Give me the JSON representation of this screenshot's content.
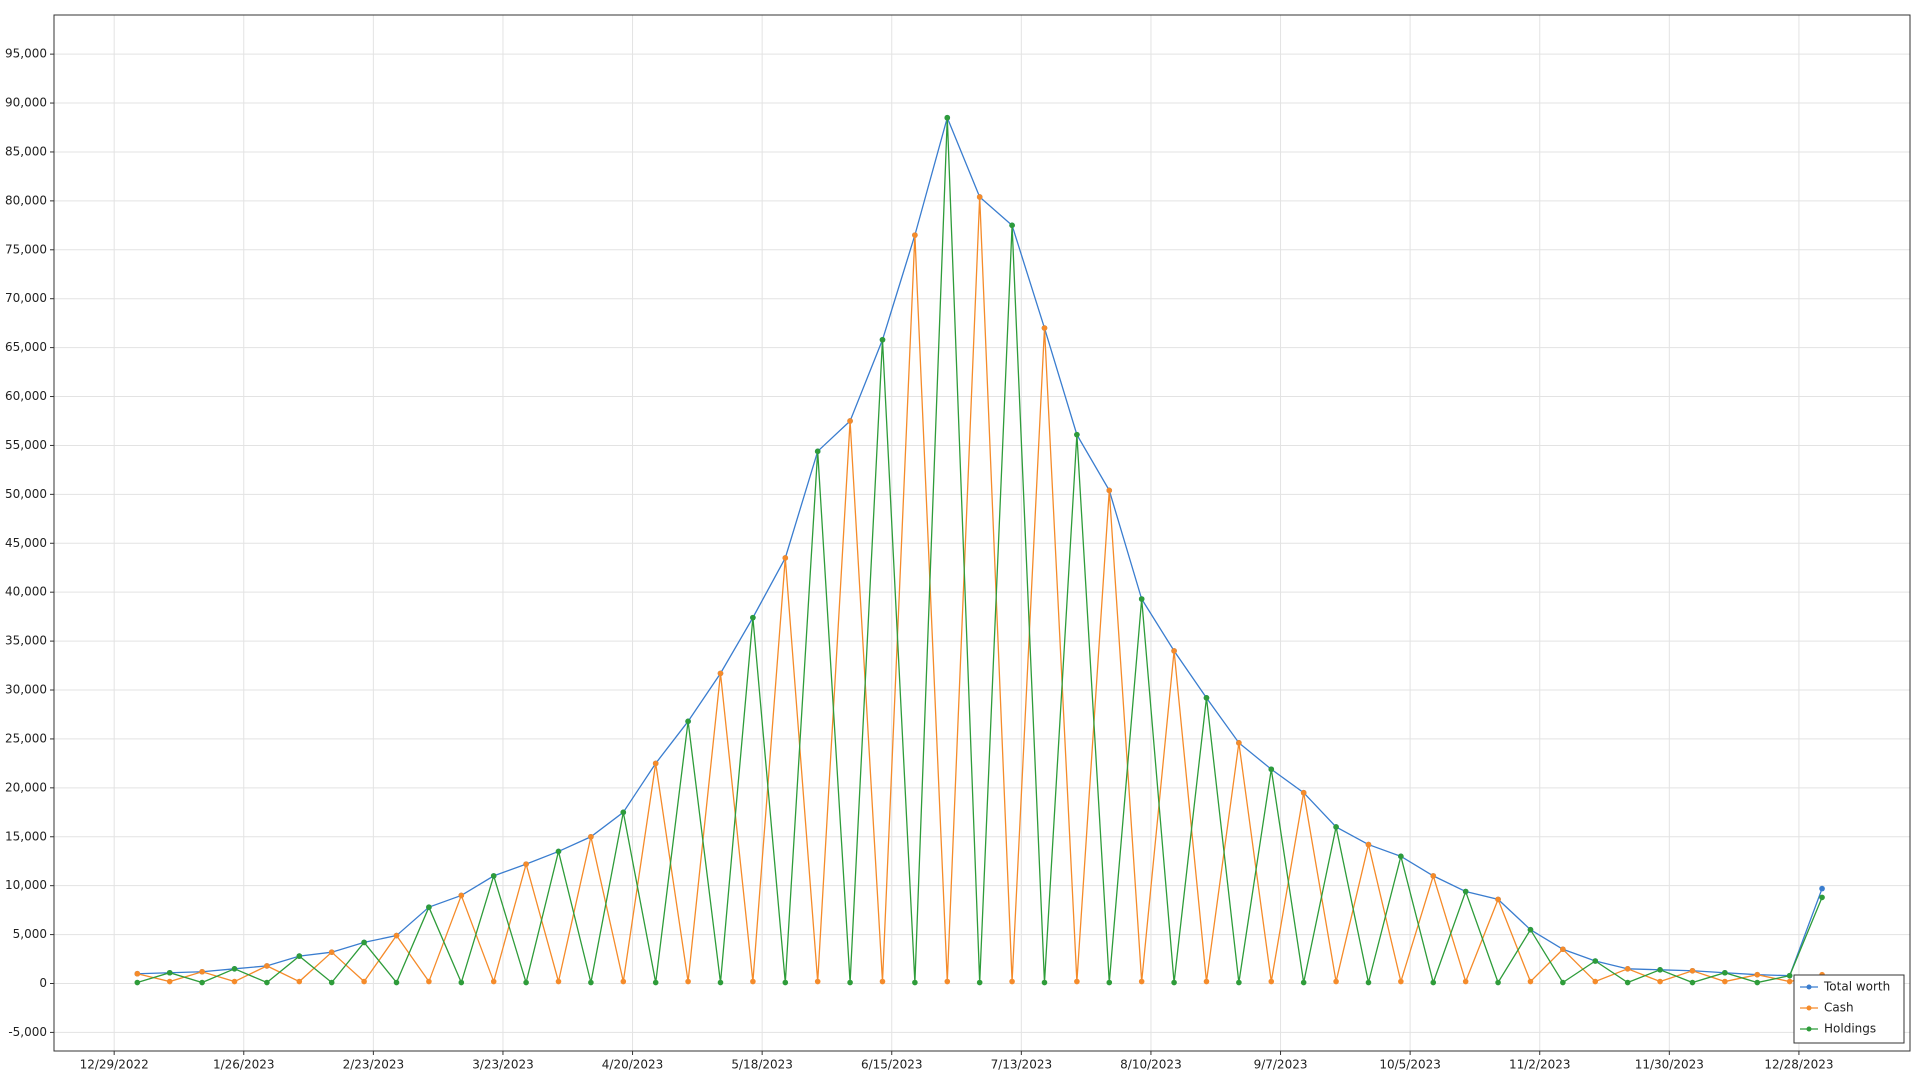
{
  "chart_data": {
    "type": "line",
    "x": [
      "1/3/2023",
      "1/10/2023",
      "1/17/2023",
      "1/24/2023",
      "1/31/2023",
      "2/7/2023",
      "2/14/2023",
      "2/21/2023",
      "2/28/2023",
      "3/7/2023",
      "3/14/2023",
      "3/21/2023",
      "3/28/2023",
      "4/4/2023",
      "4/11/2023",
      "4/18/2023",
      "4/25/2023",
      "5/2/2023",
      "5/9/2023",
      "5/16/2023",
      "5/23/2023",
      "5/30/2023",
      "6/6/2023",
      "6/13/2023",
      "6/20/2023",
      "6/27/2023",
      "7/4/2023",
      "7/11/2023",
      "7/18/2023",
      "7/25/2023",
      "8/1/2023",
      "8/8/2023",
      "8/15/2023",
      "8/22/2023",
      "8/29/2023",
      "9/5/2023",
      "9/12/2023",
      "9/19/2023",
      "9/26/2023",
      "10/3/2023",
      "10/10/2023",
      "10/17/2023",
      "10/24/2023",
      "10/31/2023",
      "11/7/2023",
      "11/14/2023",
      "11/21/2023",
      "11/28/2023",
      "12/5/2023",
      "12/12/2023",
      "12/19/2023",
      "12/26/2023",
      "1/2/2024"
    ],
    "series": [
      {
        "name": "Total worth",
        "color": "#3a7dcf",
        "values": [
          1000,
          1100,
          1200,
          1500,
          1800,
          2800,
          3200,
          4200,
          4900,
          7800,
          9000,
          11000,
          12200,
          13500,
          15000,
          17500,
          22500,
          26800,
          31700,
          37400,
          43500,
          54400,
          57500,
          65800,
          76500,
          88500,
          80400,
          77500,
          67000,
          56100,
          50400,
          39300,
          34000,
          29200,
          24600,
          21900,
          19500,
          16000,
          14200,
          13000,
          11000,
          9400,
          8600,
          5500,
          3500,
          2300,
          1500,
          1400,
          1300,
          1100,
          900,
          800,
          9700
        ]
      },
      {
        "name": "Cash",
        "color": "#f58b2a",
        "values": [
          1000,
          200,
          1200,
          200,
          1800,
          200,
          3200,
          200,
          4900,
          200,
          9000,
          200,
          12200,
          200,
          15000,
          200,
          22500,
          200,
          31700,
          200,
          43500,
          200,
          57500,
          200,
          76500,
          200,
          80400,
          200,
          67000,
          200,
          50400,
          200,
          34000,
          200,
          24600,
          200,
          19500,
          200,
          14200,
          200,
          11000,
          200,
          8600,
          200,
          3500,
          200,
          1500,
          200,
          1300,
          200,
          900,
          200,
          900
        ]
      },
      {
        "name": "Holdings",
        "color": "#2e9c3a",
        "values": [
          100,
          1100,
          100,
          1500,
          100,
          2800,
          100,
          4200,
          100,
          7800,
          100,
          11000,
          100,
          13500,
          100,
          17500,
          100,
          26800,
          100,
          37400,
          100,
          54400,
          100,
          65800,
          100,
          88500,
          100,
          77500,
          100,
          56100,
          100,
          39300,
          100,
          29200,
          100,
          21900,
          100,
          16000,
          100,
          13000,
          100,
          9400,
          100,
          5500,
          100,
          2300,
          100,
          1400,
          100,
          1100,
          100,
          800,
          8800
        ]
      }
    ],
    "xlim": [
      "12/16/2022",
      "1/21/2024"
    ],
    "xticks": [
      "12/29/2022",
      "1/26/2023",
      "2/23/2023",
      "3/23/2023",
      "4/20/2023",
      "5/18/2023",
      "6/15/2023",
      "7/13/2023",
      "8/10/2023",
      "9/7/2023",
      "10/5/2023",
      "11/2/2023",
      "11/30/2023",
      "12/28/2023"
    ],
    "ylim": [
      -6900,
      99000
    ],
    "yticks": [
      {
        "value": -5000,
        "label": "-5,000"
      },
      0,
      {
        "value": 5000,
        "label": "5,000"
      },
      {
        "value": 10000,
        "label": "10,000"
      },
      {
        "value": 15000,
        "label": "15,000"
      },
      {
        "value": 20000,
        "label": "20,000"
      },
      {
        "value": 25000,
        "label": "25,000"
      },
      {
        "value": 30000,
        "label": "30,000"
      },
      {
        "value": 35000,
        "label": "35,000"
      },
      {
        "value": 40000,
        "label": "40,000"
      },
      {
        "value": 45000,
        "label": "45,000"
      },
      {
        "value": 50000,
        "label": "50,000"
      },
      {
        "value": 55000,
        "label": "55,000"
      },
      {
        "value": 60000,
        "label": "60,000"
      },
      {
        "value": 65000,
        "label": "65,000"
      },
      {
        "value": 70000,
        "label": "70,000"
      },
      {
        "value": 75000,
        "label": "75,000"
      },
      {
        "value": 80000,
        "label": "80,000"
      },
      {
        "value": 85000,
        "label": "85,000"
      },
      {
        "value": 90000,
        "label": "90,000"
      },
      {
        "value": 95000,
        "label": "95,000"
      }
    ],
    "grid": true,
    "legend": "bottom-right"
  }
}
